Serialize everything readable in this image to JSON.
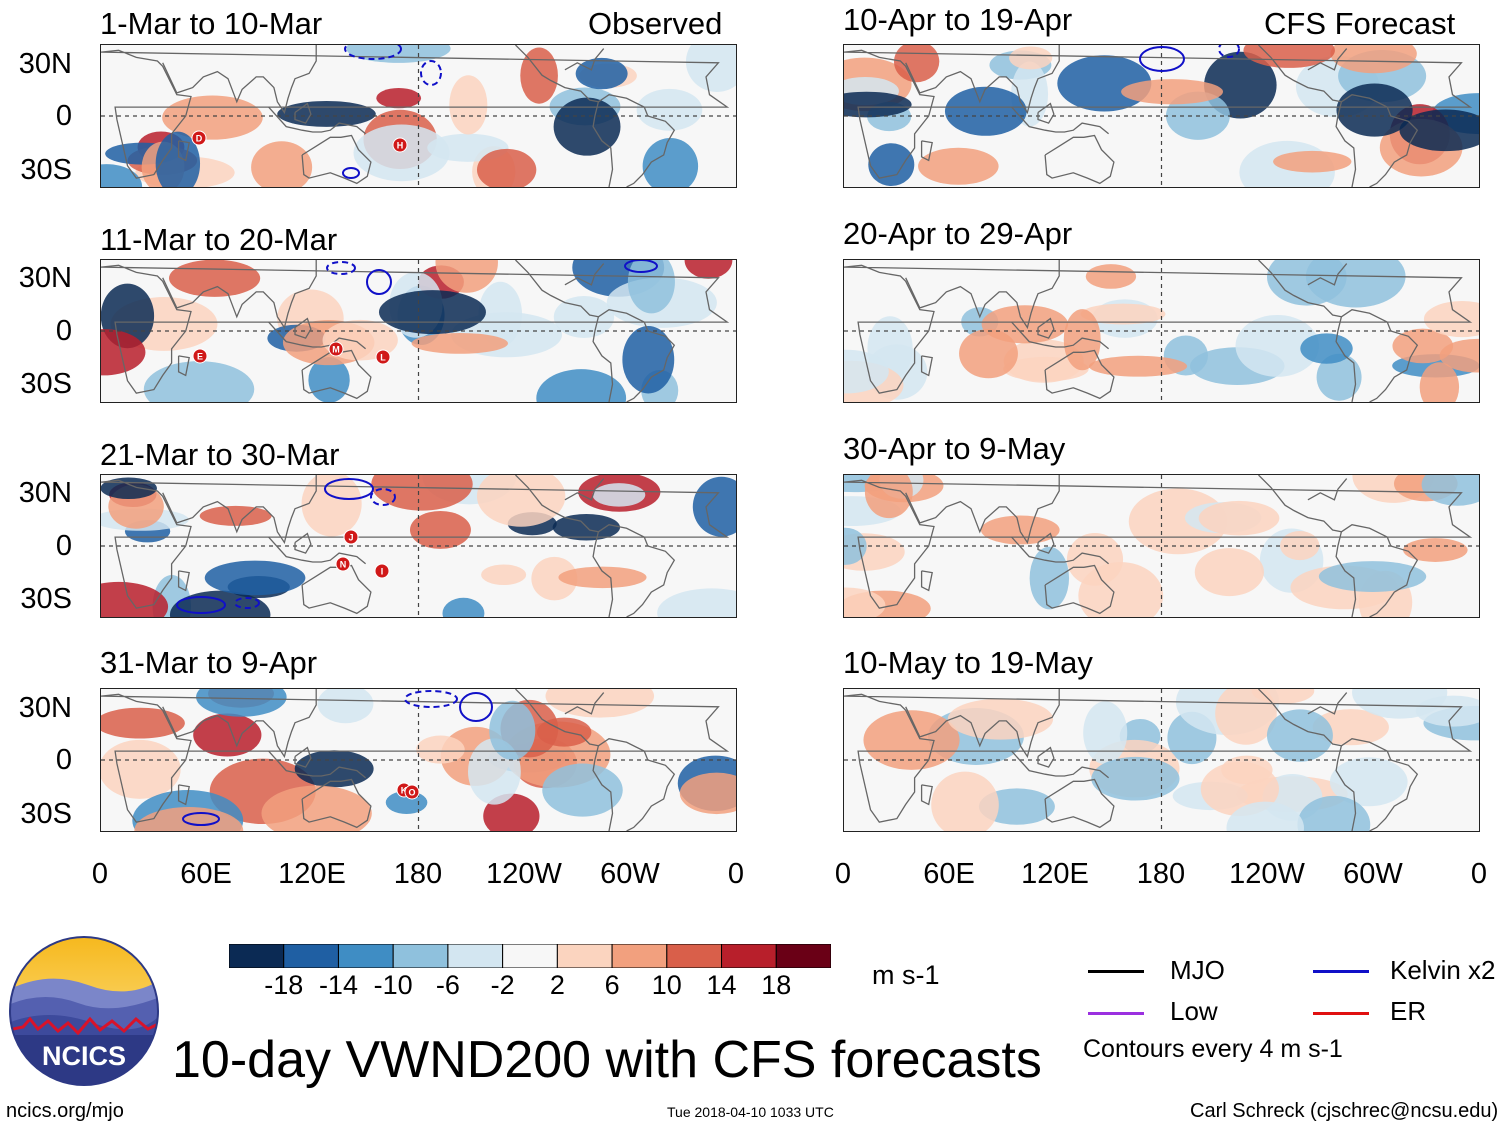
{
  "title": "10-day VWND200 with CFS forecasts",
  "logo": {
    "text": "NCICS"
  },
  "footer": {
    "url": "ncics.org/mjo",
    "timestamp": "Tue 2018-04-10 1033 UTC",
    "author": "Carl Schreck (cjschrec@ncsu.edu)"
  },
  "column_headers": {
    "observed": "Observed",
    "forecast": "CFS Forecast"
  },
  "y_ticks": [
    "30N",
    "0",
    "30S"
  ],
  "x_ticks": [
    "0",
    "60E",
    "120E",
    "180",
    "120W",
    "60W",
    "0"
  ],
  "panels_observed": [
    {
      "period": "1-Mar to 10-Mar",
      "storms": [
        "D",
        "H"
      ]
    },
    {
      "period": "11-Mar to 20-Mar",
      "storms": [
        "E",
        "M",
        "L"
      ]
    },
    {
      "period": "21-Mar to 30-Mar",
      "storms": [
        "J",
        "N",
        "I"
      ]
    },
    {
      "period": "31-Mar to 9-Apr",
      "storms": [
        "K",
        "O"
      ]
    }
  ],
  "panels_forecast": [
    {
      "period": "10-Apr to 19-Apr"
    },
    {
      "period": "20-Apr to 29-Apr"
    },
    {
      "period": "30-Apr to 9-May"
    },
    {
      "period": "10-May to 19-May"
    }
  ],
  "colorbar": {
    "unit": "m s-1",
    "labels": [
      "-18",
      "-14",
      "-10",
      "-6",
      "-2",
      "2",
      "6",
      "10",
      "14",
      "18"
    ],
    "colors": [
      "#0b2a54",
      "#1f5fa3",
      "#3f8dc4",
      "#8fc1dd",
      "#d3e6f1",
      "#f7f7f7",
      "#fbd4bf",
      "#f2a07e",
      "#d95f4a",
      "#b81f2b",
      "#6a0016"
    ]
  },
  "legend": {
    "items": [
      {
        "label": "MJO",
        "color": "#000000"
      },
      {
        "label": "Kelvin x2",
        "color": "#1010c8"
      },
      {
        "label": "Low",
        "color": "#9b30e0"
      },
      {
        "label": "ER",
        "color": "#e01010"
      }
    ],
    "note": "Contours every 4 m s-1"
  }
}
